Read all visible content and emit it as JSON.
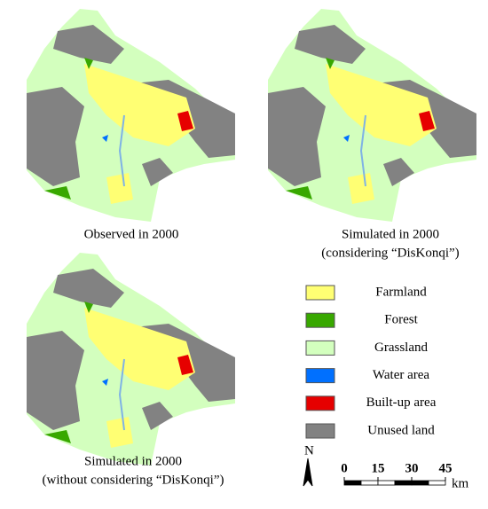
{
  "maps": [
    {
      "caption_lines": [
        "Observed in 2000"
      ]
    },
    {
      "caption_lines": [
        "Simulated in 2000",
        "(considering “DisKonqi”)"
      ]
    },
    {
      "caption_lines": [
        "Simulated in 2000",
        "(without considering “DisKonqi”)"
      ]
    }
  ],
  "legend": [
    {
      "label": "Farmland",
      "color": "#ffff73"
    },
    {
      "label": "Forest",
      "color": "#38a800"
    },
    {
      "label": "Grassland",
      "color": "#d3ffbe"
    },
    {
      "label": "Water area",
      "color": "#0070ff"
    },
    {
      "label": "Built-up area",
      "color": "#e60000"
    },
    {
      "label": "Unused land",
      "color": "#828282"
    }
  ],
  "north_arrow": "N",
  "scale_bar": {
    "ticks": [
      0,
      15,
      30,
      45
    ],
    "unit": "km"
  }
}
